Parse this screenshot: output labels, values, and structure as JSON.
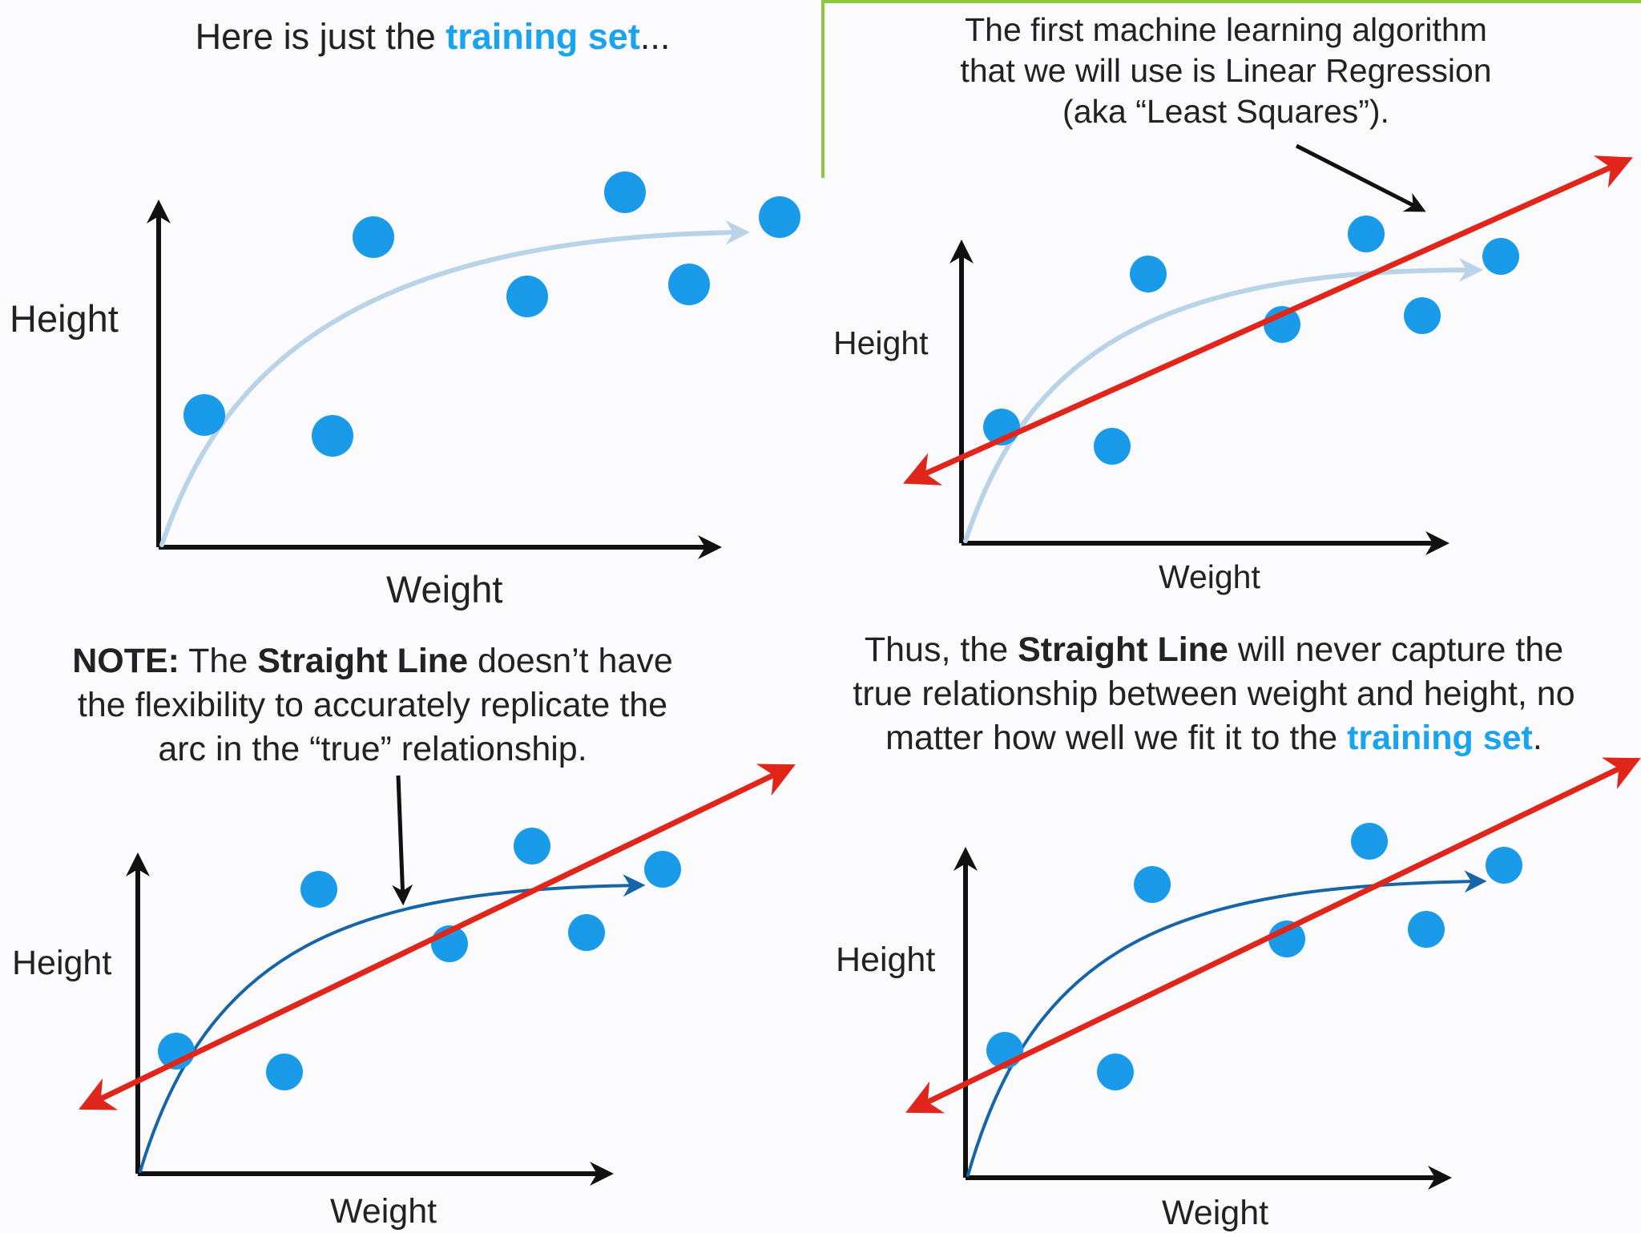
{
  "panels": [
    {
      "caption_parts": [
        "Here is just the ",
        "training set",
        "..."
      ],
      "ylabel": "Height",
      "xlabel": "Weight",
      "show_regression": false,
      "curve_style": "light"
    },
    {
      "caption_lines": [
        "The first machine learning algorithm",
        "that we will use is Linear Regression",
        "(aka “Least Squares”)."
      ],
      "ylabel": "Height",
      "xlabel": "Weight",
      "show_regression": true,
      "curve_style": "light"
    },
    {
      "caption_parts": [
        "NOTE:",
        " The ",
        "Straight Line",
        " doesn’t have",
        "the flexibility to accurately replicate the",
        "arc in the “true” relationship."
      ],
      "ylabel": "Height",
      "xlabel": "Weight",
      "show_regression": true,
      "curve_style": "dark"
    },
    {
      "caption_parts": [
        "Thus, the ",
        "Straight Line",
        " will never capture the",
        "true relationship between weight and height, no",
        "matter how well we fit it to the ",
        "training set",
        "."
      ],
      "ylabel": "Height",
      "xlabel": "Weight",
      "show_regression": true,
      "curve_style": "dark"
    }
  ],
  "colors": {
    "points": "#1a9bea",
    "curve_light": "#b9d3e8",
    "curve_dark": "#1565a8",
    "regression": "#e0261b",
    "axis": "#111111",
    "accent_text": "#1aa3ee",
    "frame": "#8dc63f"
  },
  "icons": [
    "arrow-annotation-icon"
  ]
}
